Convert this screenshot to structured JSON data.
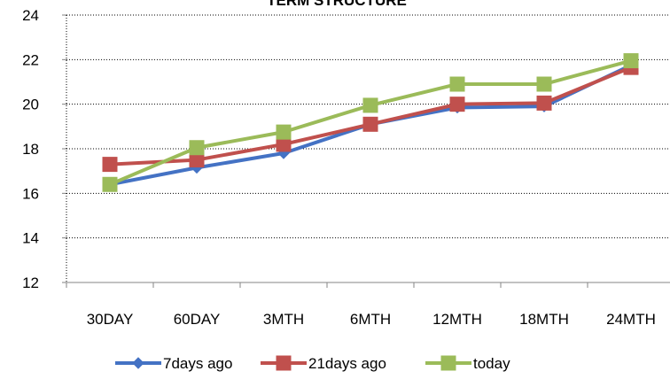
{
  "chart_data": {
    "type": "line",
    "title": "TERM STRUCTURE",
    "categories": [
      "30DAY",
      "60DAY",
      "3MTH",
      "6MTH",
      "12MTH",
      "18MTH",
      "24MTH"
    ],
    "ylim": [
      12,
      24
    ],
    "yticks": [
      12,
      14,
      16,
      18,
      20,
      22,
      24
    ],
    "grid": true,
    "legend_position": "bottom",
    "series": [
      {
        "name": "7days ago",
        "color": "#4472C4",
        "marker": "diamond",
        "values": [
          16.4,
          17.15,
          17.8,
          19.1,
          19.85,
          19.9,
          21.75
        ]
      },
      {
        "name": "21days ago",
        "color": "#C0504D",
        "marker": "square",
        "values": [
          17.3,
          17.5,
          18.2,
          19.1,
          20.0,
          20.05,
          21.65
        ]
      },
      {
        "name": "today",
        "color": "#9BBB59",
        "marker": "square",
        "values": [
          16.4,
          18.05,
          18.75,
          19.95,
          20.9,
          20.9,
          21.95
        ]
      }
    ]
  }
}
